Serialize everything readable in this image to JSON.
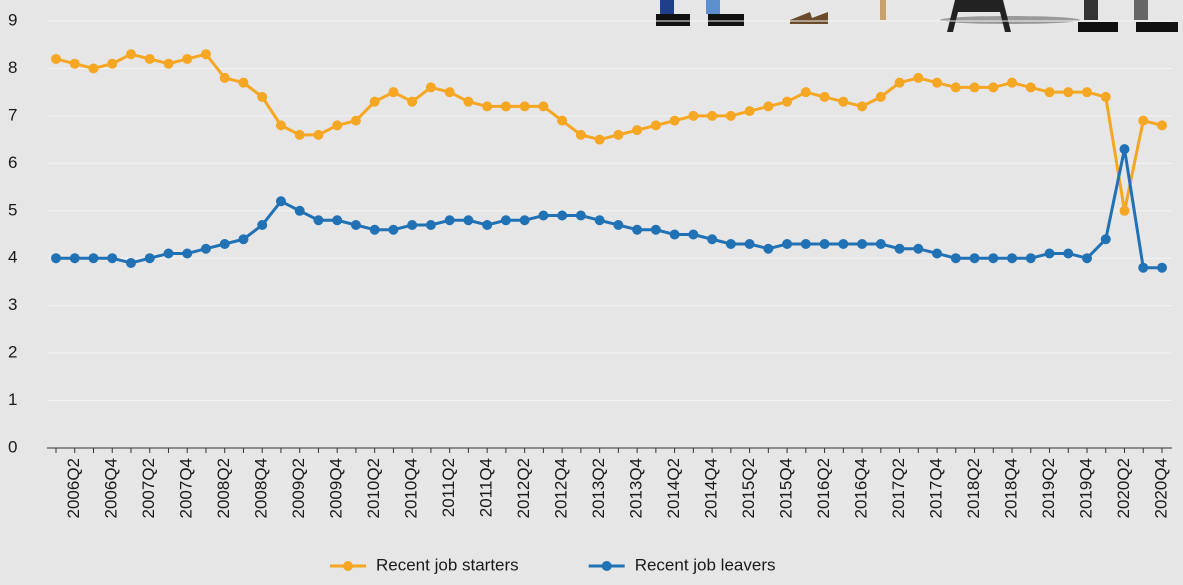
{
  "chart_data": {
    "type": "line",
    "categories": [
      null,
      "2006Q2",
      null,
      "2006Q4",
      null,
      "2007Q2",
      null,
      "2007Q4",
      null,
      "2008Q2",
      null,
      "2008Q4",
      null,
      "2009Q2",
      null,
      "2009Q4",
      null,
      "2010Q2",
      null,
      "2010Q4",
      null,
      "2011Q2",
      null,
      "2011Q4",
      null,
      "2012Q2",
      null,
      "2012Q4",
      null,
      "2013Q2",
      null,
      "2013Q4",
      null,
      "2014Q2",
      null,
      "2014Q4",
      null,
      "2015Q2",
      null,
      "2015Q4",
      null,
      "2016Q2",
      null,
      "2016Q4",
      null,
      "2017Q2",
      null,
      "2017Q4",
      null,
      "2018Q2",
      null,
      "2018Q4",
      null,
      "2019Q2",
      null,
      "2019Q4",
      null,
      "2020Q2",
      null,
      "2020Q4"
    ],
    "series": [
      {
        "name": "Recent job starters",
        "color": "#f5a623",
        "values": [
          8.2,
          8.1,
          8.0,
          8.1,
          8.3,
          8.2,
          8.1,
          8.2,
          8.3,
          7.8,
          7.7,
          7.4,
          6.8,
          6.6,
          6.6,
          6.8,
          6.9,
          7.3,
          7.5,
          7.3,
          7.6,
          7.5,
          7.3,
          7.2,
          7.2,
          7.2,
          7.2,
          6.9,
          6.6,
          6.5,
          6.6,
          6.7,
          6.8,
          6.9,
          7.0,
          7.0,
          7.0,
          7.1,
          7.2,
          7.3,
          7.5,
          7.4,
          7.3,
          7.2,
          7.4,
          7.7,
          7.8,
          7.7,
          7.6,
          7.6,
          7.6,
          7.7,
          7.6,
          7.5,
          7.5,
          7.5,
          7.4,
          5.0,
          6.9,
          6.8
        ]
      },
      {
        "name": "Recent job leavers",
        "color": "#2171b5",
        "values": [
          4.0,
          4.0,
          4.0,
          4.0,
          3.9,
          4.0,
          4.1,
          4.1,
          4.2,
          4.3,
          4.4,
          4.7,
          5.2,
          5.0,
          4.8,
          4.8,
          4.7,
          4.6,
          4.6,
          4.7,
          4.7,
          4.8,
          4.8,
          4.7,
          4.8,
          4.8,
          4.9,
          4.9,
          4.9,
          4.8,
          4.7,
          4.6,
          4.6,
          4.5,
          4.5,
          4.4,
          4.3,
          4.3,
          4.2,
          4.3,
          4.3,
          4.3,
          4.3,
          4.3,
          4.3,
          4.2,
          4.2,
          4.1,
          4.0,
          4.0,
          4.0,
          4.0,
          4.0,
          4.1,
          4.1,
          4.0,
          4.4,
          6.3,
          3.8,
          3.8
        ]
      }
    ],
    "ylim": [
      0,
      9
    ],
    "yticks": [
      0,
      1,
      2,
      3,
      4,
      5,
      6,
      7,
      8,
      9
    ],
    "grid": true
  }
}
